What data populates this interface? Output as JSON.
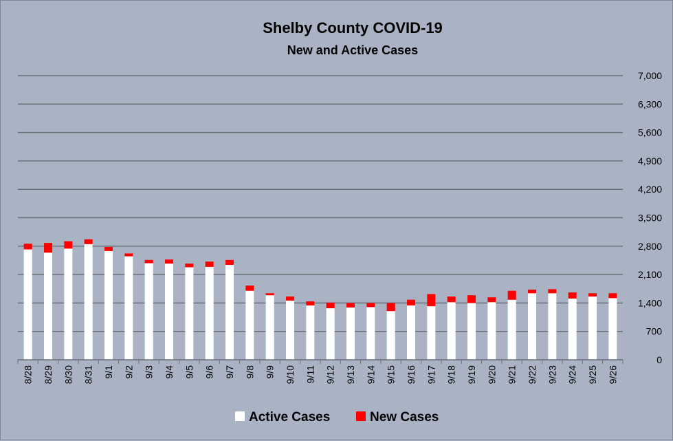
{
  "chart_data": {
    "type": "bar",
    "stacked": true,
    "title": "Shelby County COVID-19",
    "subtitle": "New and Active Cases",
    "categories": [
      "8/28",
      "8/29",
      "8/30",
      "8/31",
      "9/1",
      "9/2",
      "9/3",
      "9/4",
      "9/5",
      "9/6",
      "9/7",
      "9/8",
      "9/9",
      "9/10",
      "9/11",
      "9/12",
      "9/13",
      "9/14",
      "9/15",
      "9/16",
      "9/17",
      "9/18",
      "9/19",
      "9/20",
      "9/21",
      "9/22",
      "9/23",
      "9/24",
      "9/25",
      "9/26"
    ],
    "series": [
      {
        "name": "Active Cases",
        "color": "#ffffff",
        "values": [
          2720,
          2640,
          2740,
          2850,
          2680,
          2550,
          2380,
          2370,
          2280,
          2290,
          2340,
          1700,
          1590,
          1460,
          1340,
          1270,
          1290,
          1300,
          1200,
          1340,
          1320,
          1420,
          1400,
          1420,
          1480,
          1640,
          1640,
          1510,
          1560,
          1520
        ]
      },
      {
        "name": "New Cases",
        "color": "#ff0000",
        "values": [
          140,
          240,
          180,
          120,
          100,
          70,
          80,
          100,
          90,
          130,
          120,
          130,
          50,
          100,
          100,
          140,
          110,
          100,
          200,
          140,
          300,
          140,
          190,
          120,
          220,
          90,
          100,
          150,
          80,
          120
        ]
      }
    ],
    "ylim": [
      0,
      7000
    ],
    "yticks": [
      "0",
      "700",
      "1,400",
      "2,100",
      "2,800",
      "3,500",
      "4,200",
      "4,900",
      "5,600",
      "6,300",
      "7,000"
    ],
    "ytick_values": [
      0,
      700,
      1400,
      2100,
      2800,
      3500,
      4200,
      4900,
      5600,
      6300,
      7000
    ],
    "y_axis_side": "right",
    "grid": true,
    "legend_position": "bottom",
    "xlabel": "",
    "ylabel": ""
  }
}
